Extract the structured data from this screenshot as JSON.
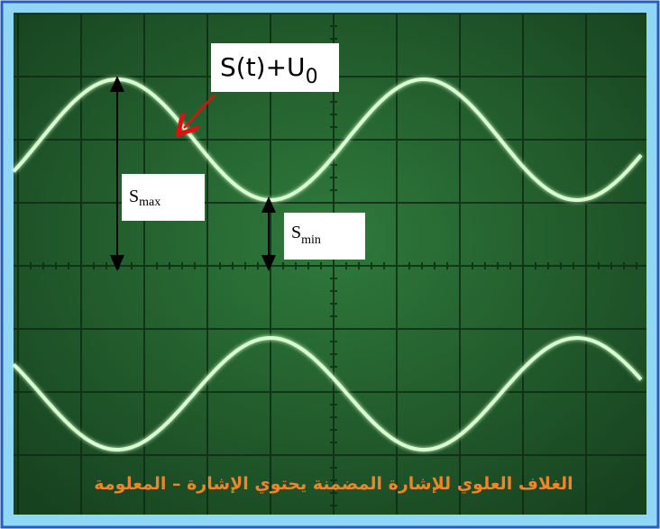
{
  "labels": {
    "signal": {
      "base": "S(t)+U",
      "sub": "0"
    },
    "smax": {
      "base": "S",
      "sub": "max"
    },
    "smin": {
      "base": "S",
      "sub": "min"
    }
  },
  "caption": "الغلاف العلوي للإشارة المضمنة يحتوي الإشارة – المعلومة"
}
